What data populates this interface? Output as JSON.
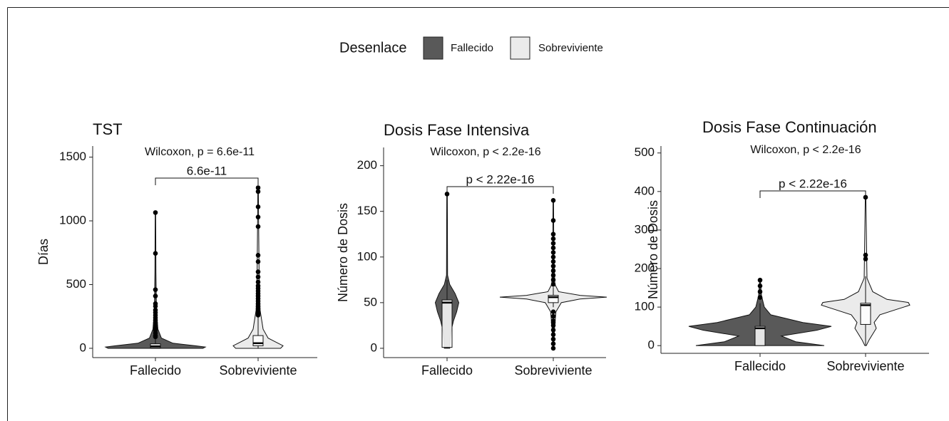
{
  "legend_title": "Desenlace",
  "chart_data": [
    {
      "type": "violin",
      "title": "TST",
      "ylabel": "Días",
      "annotation": "Wilcoxon, p = 6.6e-11",
      "bracket_label": "6.6e-11",
      "categories": [
        "Fallecido",
        "Sobreviviente"
      ],
      "ylim": [
        -73,
        1587
      ],
      "yticks": [
        0,
        500,
        1000,
        1500
      ],
      "series": [
        {
          "name": "Fallecido",
          "color": "#595959",
          "box": {
            "min": 0,
            "q1": 3,
            "median": 15,
            "q3": 35,
            "max": 80
          },
          "outliers": [
            1065,
            745,
            460,
            410,
            350,
            330,
            300,
            280,
            260,
            240,
            220,
            200,
            180,
            160,
            140,
            120,
            100,
            90
          ],
          "density_y": [
            0,
            10,
            20,
            40,
            80,
            150,
            300,
            600,
            1065
          ],
          "density": [
            0.95,
            1,
            0.8,
            0.35,
            0.12,
            0.05,
            0.02,
            0.01,
            0.005
          ]
        },
        {
          "name": "Sobreviviente",
          "color": "#ebebeb",
          "box": {
            "min": 0,
            "q1": 20,
            "median": 40,
            "q3": 100,
            "max": 250
          },
          "outliers": [
            1260,
            1230,
            1110,
            1030,
            955,
            730,
            680,
            600,
            560,
            520,
            490,
            470,
            450,
            430,
            410,
            390,
            370,
            350,
            330,
            310,
            290,
            270,
            260
          ],
          "density_y": [
            0,
            20,
            40,
            80,
            150,
            300,
            600,
            1000,
            1260
          ],
          "density": [
            0.45,
            0.5,
            0.4,
            0.2,
            0.1,
            0.04,
            0.02,
            0.01,
            0.005
          ]
        }
      ]
    },
    {
      "type": "violin",
      "title": "Dosis Fase Intensiva",
      "ylabel": "Número de Dosis",
      "annotation": "Wilcoxon, p < 2.2e-16",
      "bracket_label": "p < 2.22e-16",
      "categories": [
        "Fallecido",
        "Sobreviviente"
      ],
      "ylim": [
        -10.2,
        220
      ],
      "yticks": [
        0,
        50,
        100,
        150,
        200
      ],
      "series": [
        {
          "name": "Fallecido",
          "color": "#595959",
          "box": {
            "min": 0,
            "q1": 1,
            "median": 50,
            "q3": 53,
            "max": 75
          },
          "outliers": [
            169
          ],
          "density_y": [
            0,
            10,
            20,
            30,
            40,
            50,
            60,
            70,
            80,
            169
          ],
          "density": [
            0.05,
            0.06,
            0.08,
            0.12,
            0.18,
            0.22,
            0.15,
            0.05,
            0.01,
            0.005
          ]
        },
        {
          "name": "Sobreviviente",
          "color": "#ebebeb",
          "box": {
            "min": 45,
            "q1": 50,
            "median": 56,
            "q3": 58,
            "max": 67
          },
          "outliers": [
            162,
            140,
            125,
            120,
            115,
            110,
            105,
            100,
            95,
            90,
            85,
            80,
            75,
            70,
            40,
            35,
            30,
            28,
            25,
            20,
            15,
            10,
            5,
            0
          ],
          "density_y": [
            0,
            20,
            40,
            50,
            54,
            56,
            58,
            62,
            70,
            100,
            162
          ],
          "density": [
            0.01,
            0.02,
            0.05,
            0.15,
            0.5,
            1,
            0.5,
            0.1,
            0.03,
            0.01,
            0.005
          ]
        }
      ]
    },
    {
      "type": "violin",
      "title": "Dosis Fase Continuación",
      "ylabel": "Número de Dosis",
      "annotation": "Wilcoxon, p < 2.2e-16",
      "bracket_label": "p < 2.22e-16",
      "categories": [
        "Fallecido",
        "Sobreviviente"
      ],
      "ylim": [
        -20,
        518
      ],
      "yticks": [
        0,
        100,
        200,
        300,
        400,
        500
      ],
      "series": [
        {
          "name": "Fallecido",
          "color": "#595959",
          "box": {
            "min": 0,
            "q1": 0,
            "median": 45,
            "q3": 50,
            "max": 110
          },
          "outliers": [
            170,
            155,
            140,
            125
          ],
          "density_y": [
            0,
            10,
            25,
            40,
            50,
            60,
            80,
            100,
            130,
            170
          ],
          "density": [
            0.9,
            0.5,
            0.3,
            0.8,
            1,
            0.6,
            0.15,
            0.06,
            0.02,
            0.005
          ]
        },
        {
          "name": "Sobreviviente",
          "color": "#ebebeb",
          "box": {
            "min": 0,
            "q1": 55,
            "median": 105,
            "q3": 110,
            "max": 180
          },
          "outliers": [
            385,
            235,
            225
          ],
          "density_y": [
            0,
            15,
            30,
            45,
            60,
            80,
            95,
            105,
            112,
            120,
            140,
            175,
            385
          ],
          "density": [
            0.01,
            0.05,
            0.1,
            0.15,
            0.12,
            0.2,
            0.45,
            0.62,
            0.6,
            0.3,
            0.1,
            0.02,
            0.004
          ]
        }
      ]
    }
  ]
}
